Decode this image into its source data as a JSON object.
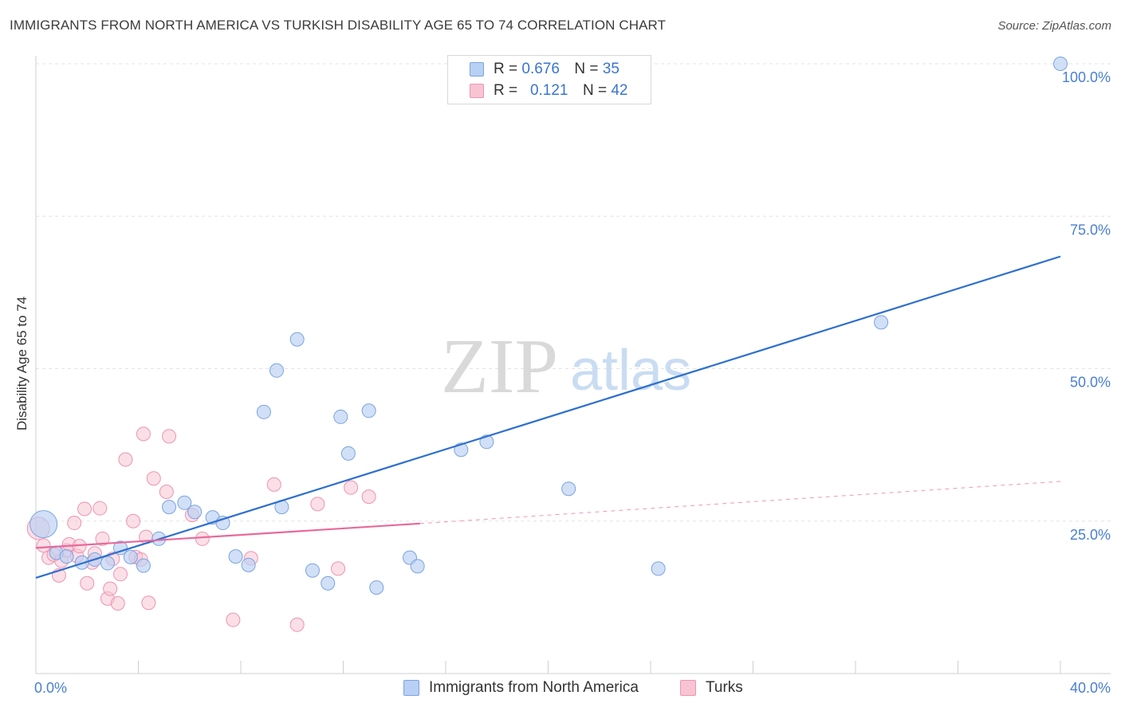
{
  "header": {
    "title": "IMMIGRANTS FROM NORTH AMERICA VS TURKISH DISABILITY AGE 65 TO 74 CORRELATION CHART",
    "source": "Source: ZipAtlas.com"
  },
  "watermark": {
    "zip": "ZIP",
    "atlas": "atlas"
  },
  "legend": {
    "series1": {
      "r_label": "R =",
      "r_value": "0.676",
      "n_label": "N =",
      "n_value": "35"
    },
    "series2": {
      "r_label": "R =",
      "r_value": "0.121",
      "n_label": "N =",
      "n_value": "42"
    }
  },
  "colors": {
    "blue_fill": "#b8d0f3",
    "blue_stroke": "#7aa3e0",
    "blue_line": "#2d6fd0",
    "pink_fill": "#f8c4d4",
    "pink_stroke": "#ee93b1",
    "pink_line": "#e8699a",
    "grid": "#e3e3e3",
    "tick_text": "#4a7fd0"
  },
  "chart_data": {
    "type": "scatter",
    "title": "IMMIGRANTS FROM NORTH AMERICA VS TURKISH DISABILITY AGE 65 TO 74 CORRELATION CHART",
    "xlabel": "",
    "ylabel": "Disability Age 65 to 74",
    "xlim": [
      0,
      40
    ],
    "ylim": [
      0,
      102
    ],
    "x_tick_labels": [
      "0.0%",
      "40.0%"
    ],
    "y_ticks": [
      25,
      50,
      75,
      100
    ],
    "y_tick_labels": [
      "25.0%",
      "50.0%",
      "75.0%",
      "100.0%"
    ],
    "grid": true,
    "series": [
      {
        "name": "Immigrants from North America",
        "color": "#7aa3e0",
        "r": 0.676,
        "n": 35,
        "trend": {
          "x": [
            0,
            40
          ],
          "y": [
            15.7,
            68.4
          ],
          "dashed_from": null
        },
        "points": [
          {
            "x": 0.3,
            "y": 24.5,
            "big": true
          },
          {
            "x": 0.8,
            "y": 19.8
          },
          {
            "x": 1.2,
            "y": 19.2
          },
          {
            "x": 1.8,
            "y": 18.2
          },
          {
            "x": 2.3,
            "y": 18.7
          },
          {
            "x": 2.8,
            "y": 18.1
          },
          {
            "x": 3.3,
            "y": 20.6
          },
          {
            "x": 3.7,
            "y": 19.1
          },
          {
            "x": 4.2,
            "y": 17.7
          },
          {
            "x": 4.8,
            "y": 22.1
          },
          {
            "x": 5.2,
            "y": 27.3
          },
          {
            "x": 5.8,
            "y": 28.0
          },
          {
            "x": 6.2,
            "y": 26.5
          },
          {
            "x": 6.9,
            "y": 25.6
          },
          {
            "x": 7.3,
            "y": 24.7
          },
          {
            "x": 7.8,
            "y": 19.2
          },
          {
            "x": 8.3,
            "y": 17.8
          },
          {
            "x": 8.9,
            "y": 42.9
          },
          {
            "x": 9.4,
            "y": 49.7
          },
          {
            "x": 9.6,
            "y": 27.3
          },
          {
            "x": 10.2,
            "y": 54.8
          },
          {
            "x": 10.8,
            "y": 16.9
          },
          {
            "x": 11.4,
            "y": 14.8
          },
          {
            "x": 11.9,
            "y": 42.1
          },
          {
            "x": 12.2,
            "y": 36.1
          },
          {
            "x": 13.0,
            "y": 43.1
          },
          {
            "x": 13.3,
            "y": 14.1
          },
          {
            "x": 14.6,
            "y": 19.0
          },
          {
            "x": 14.9,
            "y": 17.6
          },
          {
            "x": 16.6,
            "y": 36.7
          },
          {
            "x": 17.6,
            "y": 38.0
          },
          {
            "x": 20.8,
            "y": 30.3
          },
          {
            "x": 24.3,
            "y": 17.2
          },
          {
            "x": 33.0,
            "y": 57.6
          },
          {
            "x": 40.0,
            "y": 100.0
          }
        ]
      },
      {
        "name": "Turks",
        "color": "#ee93b1",
        "r": 0.121,
        "n": 42,
        "trend": {
          "x": [
            0,
            15
          ],
          "y": [
            20.6,
            24.6
          ],
          "dashed_to": [
            40,
            31.5
          ]
        },
        "points": [
          {
            "x": 0.1,
            "y": 23.8,
            "big": true
          },
          {
            "x": 0.3,
            "y": 21.0
          },
          {
            "x": 0.5,
            "y": 19.0
          },
          {
            "x": 0.7,
            "y": 19.5
          },
          {
            "x": 0.9,
            "y": 16.1
          },
          {
            "x": 1.0,
            "y": 18.5
          },
          {
            "x": 1.2,
            "y": 20.2
          },
          {
            "x": 1.3,
            "y": 21.2
          },
          {
            "x": 1.5,
            "y": 24.7
          },
          {
            "x": 1.6,
            "y": 19.3
          },
          {
            "x": 1.7,
            "y": 20.9
          },
          {
            "x": 1.9,
            "y": 27.0
          },
          {
            "x": 2.0,
            "y": 14.8
          },
          {
            "x": 2.2,
            "y": 18.2
          },
          {
            "x": 2.3,
            "y": 19.7
          },
          {
            "x": 2.5,
            "y": 27.1
          },
          {
            "x": 2.6,
            "y": 22.1
          },
          {
            "x": 2.8,
            "y": 12.3
          },
          {
            "x": 2.9,
            "y": 13.9
          },
          {
            "x": 3.0,
            "y": 18.8
          },
          {
            "x": 3.2,
            "y": 11.5
          },
          {
            "x": 3.3,
            "y": 16.3
          },
          {
            "x": 3.5,
            "y": 35.1
          },
          {
            "x": 3.8,
            "y": 25.0
          },
          {
            "x": 3.9,
            "y": 19.1
          },
          {
            "x": 4.1,
            "y": 18.7
          },
          {
            "x": 4.2,
            "y": 39.3
          },
          {
            "x": 4.3,
            "y": 22.4
          },
          {
            "x": 4.4,
            "y": 11.6
          },
          {
            "x": 4.6,
            "y": 32.0
          },
          {
            "x": 5.1,
            "y": 29.8
          },
          {
            "x": 5.2,
            "y": 38.9
          },
          {
            "x": 6.1,
            "y": 26.0
          },
          {
            "x": 6.5,
            "y": 22.1
          },
          {
            "x": 7.7,
            "y": 8.8
          },
          {
            "x": 8.4,
            "y": 18.9
          },
          {
            "x": 9.3,
            "y": 31.0
          },
          {
            "x": 10.2,
            "y": 8.0
          },
          {
            "x": 11.0,
            "y": 27.8
          },
          {
            "x": 11.8,
            "y": 17.2
          },
          {
            "x": 12.3,
            "y": 30.5
          },
          {
            "x": 13.0,
            "y": 29.0
          }
        ]
      }
    ]
  }
}
